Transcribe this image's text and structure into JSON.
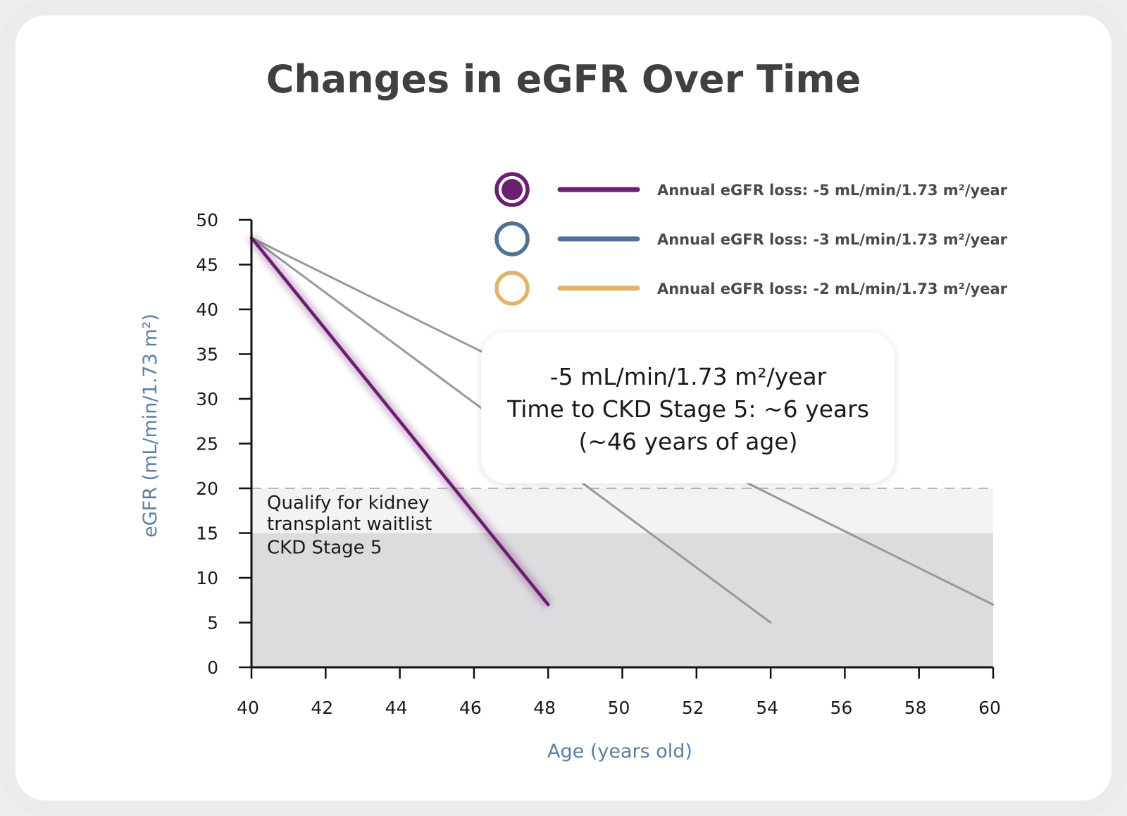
{
  "chart_data": {
    "type": "line",
    "title": "Changes in eGFR Over Time",
    "xlabel": "Age (years old)",
    "ylabel": "eGFR (mL/min/1.73 m²)",
    "xlim": [
      40,
      60
    ],
    "ylim": [
      0,
      50
    ],
    "xticks": [
      40,
      42,
      44,
      46,
      48,
      50,
      52,
      54,
      56,
      58,
      60
    ],
    "yticks": [
      0,
      5,
      10,
      15,
      20,
      25,
      30,
      35,
      40,
      45,
      50
    ],
    "series": [
      {
        "name": "Annual eGFR loss: -5 mL/min/1.73 m²/year",
        "x": [
          40,
          48
        ],
        "y": [
          48,
          7
        ],
        "color": "#6b1f6e",
        "highlighted": true
      },
      {
        "name": "Annual eGFR loss: -3 mL/min/1.73 m²/year",
        "x": [
          40,
          54
        ],
        "y": [
          48,
          5
        ],
        "color": "#999999",
        "legend_color": "#4e7197"
      },
      {
        "name": "Annual eGFR loss: -2 mL/min/1.73 m²/year",
        "x": [
          40,
          60
        ],
        "y": [
          48,
          7
        ],
        "color": "#999999",
        "legend_color": "#e2b46a"
      }
    ],
    "zones": [
      {
        "label": "Qualify for kidney transplant waitlist",
        "lines": [
          "Qualify for kidney",
          "transplant waitlist"
        ],
        "y": [
          15,
          20
        ],
        "color": "#f3f3f4"
      },
      {
        "label": "CKD Stage 5",
        "lines": [
          "CKD Stage 5"
        ],
        "y": [
          0,
          15
        ],
        "color": "#dcdcde"
      }
    ],
    "threshold_line": 20,
    "callout": {
      "lines": [
        "-5 mL/min/1.73 m²/year",
        "Time to CKD Stage 5: ~6 years",
        "(~46 years of age)"
      ]
    },
    "grid": false,
    "legend_position": "top-right"
  }
}
